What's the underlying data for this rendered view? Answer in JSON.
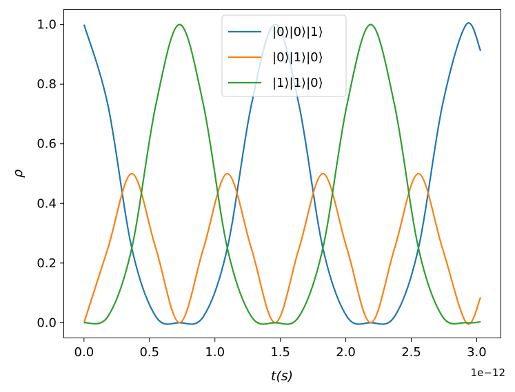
{
  "chart_data": {
    "type": "line",
    "xlabel": "t(s)",
    "ylabel": "ρ",
    "x_offset_label": "1e−12",
    "xlim": [
      -0.152,
      3.182
    ],
    "ylim": [
      -0.05,
      1.05
    ],
    "x_ticks": [
      0.0,
      0.5,
      1.0,
      1.5,
      2.0,
      2.5,
      3.0
    ],
    "x_tick_labels": [
      "0.0",
      "0.5",
      "1.0",
      "1.5",
      "2.0",
      "2.5",
      "3.0"
    ],
    "y_ticks": [
      0.0,
      0.2,
      0.4,
      0.6,
      0.8,
      1.0
    ],
    "y_tick_labels": [
      "0.0",
      "0.2",
      "0.4",
      "0.6",
      "0.8",
      "1.0"
    ],
    "grid": false,
    "legend_position": "top-center",
    "series": [
      {
        "name": "|0⟩|0⟩|1⟩",
        "color": "#1f77b4",
        "x": [
          0.0,
          0.183,
          0.365,
          0.548,
          0.73,
          0.913,
          1.095,
          1.278,
          1.46,
          1.643,
          1.825,
          2.008,
          2.19,
          2.373,
          2.555,
          2.738,
          2.92,
          3.03
        ],
        "y": [
          1.0,
          0.729,
          0.25,
          0.021,
          0.0,
          0.021,
          0.25,
          0.729,
          1.0,
          0.729,
          0.25,
          0.021,
          0.0,
          0.021,
          0.25,
          0.729,
          1.0,
          0.912
        ]
      },
      {
        "name": "|0⟩|1⟩|0⟩",
        "color": "#ff7f0e",
        "x": [
          0.0,
          0.183,
          0.365,
          0.548,
          0.73,
          0.913,
          1.095,
          1.278,
          1.46,
          1.643,
          1.825,
          2.008,
          2.19,
          2.373,
          2.555,
          2.738,
          2.92,
          3.03
        ],
        "y": [
          0.0,
          0.25,
          0.5,
          0.25,
          0.0,
          0.25,
          0.5,
          0.25,
          0.0,
          0.25,
          0.5,
          0.25,
          0.0,
          0.25,
          0.5,
          0.25,
          0.0,
          0.085
        ]
      },
      {
        "name": "|1⟩|1⟩|0⟩",
        "color": "#2ca02c",
        "x": [
          0.0,
          0.183,
          0.365,
          0.548,
          0.73,
          0.913,
          1.095,
          1.278,
          1.46,
          1.643,
          1.825,
          2.008,
          2.19,
          2.373,
          2.555,
          2.738,
          2.92,
          3.03
        ],
        "y": [
          0.0,
          0.021,
          0.25,
          0.729,
          1.0,
          0.729,
          0.25,
          0.021,
          0.0,
          0.021,
          0.25,
          0.729,
          1.0,
          0.729,
          0.25,
          0.021,
          0.0,
          0.003
        ]
      }
    ]
  }
}
